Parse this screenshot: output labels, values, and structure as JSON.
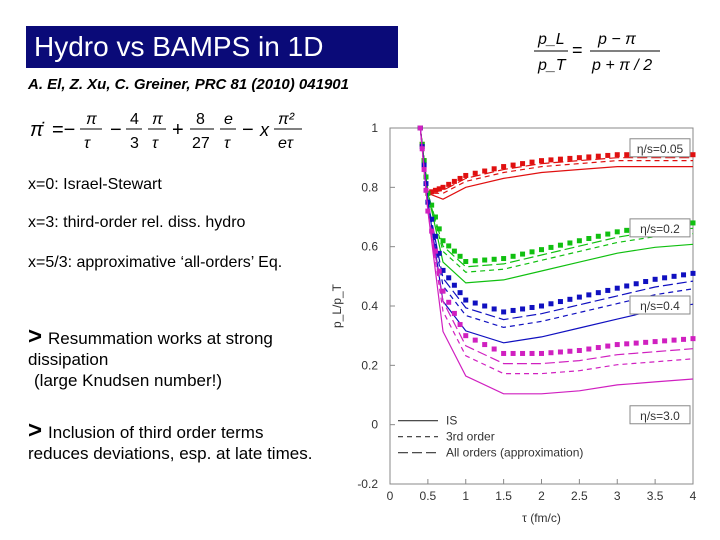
{
  "title": "Hydro vs BAMPS in 1D",
  "reference": "A. El, Z. Xu, C. Greiner,  PRC 81 (2010) 041901",
  "equation_main": {
    "lhs": "π̇",
    "t1_num": "π",
    "t1_den": "τ",
    "t2_coef_num": "4",
    "t2_coef_den": "3",
    "t2_num": "π",
    "t2_den": "τ",
    "t3_coef_num": "8",
    "t3_coef_den": "27",
    "t3_num": "e",
    "t3_den": "τ",
    "t4_var": "x",
    "t4_num": "π²",
    "t4_den": "eτ"
  },
  "equation_side": {
    "lhs_num": "p_L",
    "lhs_den": "p_T",
    "rhs_num": "p − π",
    "rhs_den": "p + π / 2"
  },
  "items": [
    "x=0: Israel-Stewart",
    "x=3: third-order rel. diss. hydro",
    "x=5/3: approximative ‘all-orders’  Eq."
  ],
  "bullets": [
    {
      "marker": ">",
      "text": "Resummation works at strong dissipation"
    },
    {
      "marker": "",
      "text": "(large Knudsen number!)"
    },
    {
      "marker": ">",
      "text": "Inclusion of third order terms reduces deviations, esp. at late times."
    }
  ],
  "chart_data": {
    "type": "line",
    "xlabel": "τ (fm/c)",
    "ylabel": "p_L/p_T",
    "xlim": [
      0,
      4
    ],
    "ylim": [
      -0.2,
      1.0
    ],
    "xticks": [
      "0",
      "0.5",
      "1",
      "1.5",
      "2",
      "2.5",
      "3",
      "3.5",
      "4"
    ],
    "yticks": [
      "-0.2",
      "0",
      "0.2",
      "0.4",
      "0.6",
      "0.8",
      "1"
    ],
    "legend": [
      "IS",
      "3rd order",
      "All orders (approximation)"
    ],
    "series": [
      {
        "name": "η/s=0.05",
        "color": "#e01010",
        "x": [
          0.4,
          0.5,
          0.7,
          1.0,
          1.5,
          2.0,
          2.5,
          3.0,
          3.5,
          4.0
        ],
        "bamps": [
          1.0,
          0.78,
          0.8,
          0.84,
          0.87,
          0.89,
          0.9,
          0.91,
          0.91,
          0.91
        ]
      },
      {
        "name": "η/s=0.2",
        "color": "#10c010",
        "x": [
          0.4,
          0.5,
          0.7,
          1.0,
          1.5,
          2.0,
          2.5,
          3.0,
          3.5,
          4.0
        ],
        "bamps": [
          1.0,
          0.78,
          0.62,
          0.55,
          0.56,
          0.59,
          0.62,
          0.65,
          0.67,
          0.68
        ]
      },
      {
        "name": "η/s=0.4",
        "color": "#1010c0",
        "x": [
          0.4,
          0.5,
          0.7,
          1.0,
          1.5,
          2.0,
          2.5,
          3.0,
          3.5,
          4.0
        ],
        "bamps": [
          1.0,
          0.75,
          0.52,
          0.42,
          0.38,
          0.4,
          0.43,
          0.46,
          0.49,
          0.51
        ]
      },
      {
        "name": "η/s=3.0",
        "color": "#d020c0",
        "x": [
          0.4,
          0.5,
          0.7,
          1.0,
          1.5,
          2.0,
          2.5,
          3.0,
          3.5,
          4.0
        ],
        "bamps": [
          1.0,
          0.72,
          0.45,
          0.3,
          0.24,
          0.24,
          0.25,
          0.27,
          0.28,
          0.29
        ]
      }
    ]
  }
}
